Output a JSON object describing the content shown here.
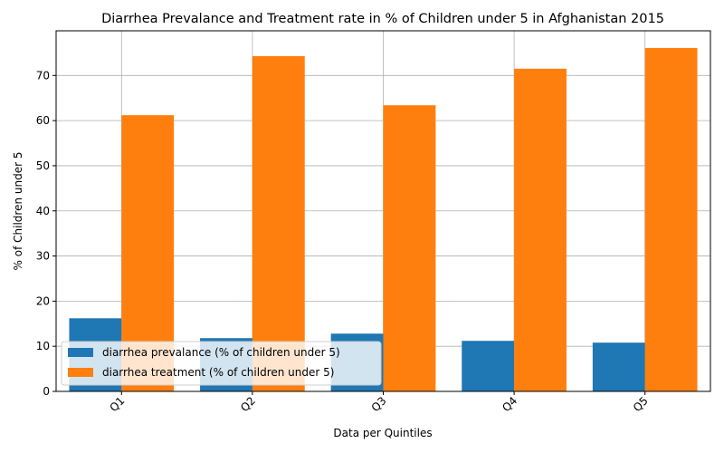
{
  "chart_data": {
    "type": "bar",
    "title": "Diarrhea Prevalance and Treatment rate in % of Children under 5 in Afghanistan 2015",
    "xlabel": "Data per Quintiles",
    "ylabel": "% of Children under 5",
    "categories": [
      "Q1",
      "Q2",
      "Q3",
      "Q4",
      "Q5"
    ],
    "series": [
      {
        "name": "diarrhea prevalance (% of children under 5)",
        "color": "#1f77b4",
        "values": [
          16.2,
          11.8,
          12.8,
          11.2,
          10.8
        ]
      },
      {
        "name": "diarrhea treatment (% of children under 5)",
        "color": "#ff7f0e",
        "values": [
          61.2,
          74.3,
          63.4,
          71.5,
          76.1
        ]
      }
    ],
    "ylim": [
      0,
      79.9
    ],
    "yticks": [
      0,
      10,
      20,
      30,
      40,
      50,
      60,
      70
    ],
    "grid": true,
    "legend_position": "lower-left"
  }
}
